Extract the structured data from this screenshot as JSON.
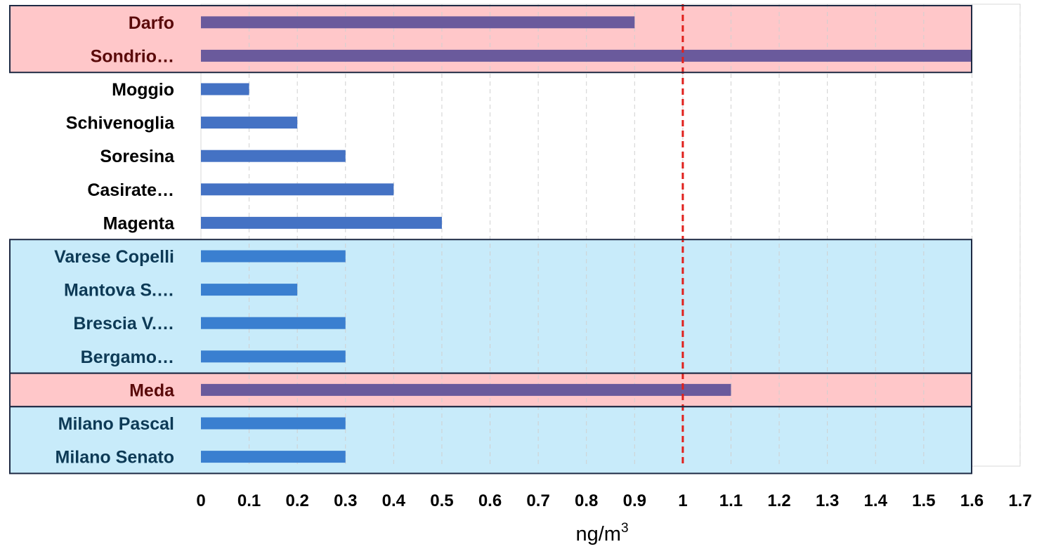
{
  "chart_data": {
    "type": "bar",
    "orientation": "horizontal",
    "categories": [
      "Darfo",
      "Sondrio…",
      "Moggio",
      "Schivenoglia",
      "Soresina",
      "Casirate…",
      "Magenta",
      "Varese Copelli",
      "Mantova S.…",
      "Brescia V.…",
      "Bergamo…",
      "Meda",
      "Milano Pascal",
      "Milano Senato"
    ],
    "values": [
      0.9,
      1.6,
      0.1,
      0.2,
      0.3,
      0.4,
      0.5,
      0.3,
      0.2,
      0.3,
      0.3,
      1.1,
      0.3,
      0.3
    ],
    "bar_groups": [
      "pink",
      "pink",
      "white",
      "white",
      "white",
      "white",
      "white",
      "blue",
      "blue",
      "blue",
      "blue",
      "pink",
      "blue",
      "blue"
    ],
    "xlim": [
      0,
      1.7
    ],
    "xticks": [
      "0",
      "0.1",
      "0.2",
      "0.3",
      "0.4",
      "0.5",
      "0.6",
      "0.7",
      "0.8",
      "0.9",
      "1",
      "1.1",
      "1.2",
      "1.3",
      "1.4",
      "1.5",
      "1.6",
      "1.7"
    ],
    "xlabel": "ng/m",
    "xlabel_sup": "3",
    "reference_line": {
      "value": 1,
      "color": "#e0201c",
      "style": "dashed"
    },
    "grid": {
      "vertical": true,
      "style": "dashed"
    },
    "colors": {
      "bar_pink": "#6a5a9c",
      "bar_white": "#4472c4",
      "bar_blue": "#3a7fd0",
      "highlight_pink": "#ffc7c9",
      "highlight_blue": "#c8ebfa",
      "label_pink": "#5a0a0a",
      "label_white": "#000000",
      "label_blue": "#0d3a56",
      "box_border": "#1e2a44"
    },
    "highlight_boxes": [
      {
        "color": "pink",
        "from": 0,
        "to": 1
      },
      {
        "color": "blue",
        "from": 7,
        "to": 10
      },
      {
        "color": "pink",
        "from": 11,
        "to": 11
      },
      {
        "color": "blue",
        "from": 12,
        "to": 13
      }
    ]
  }
}
